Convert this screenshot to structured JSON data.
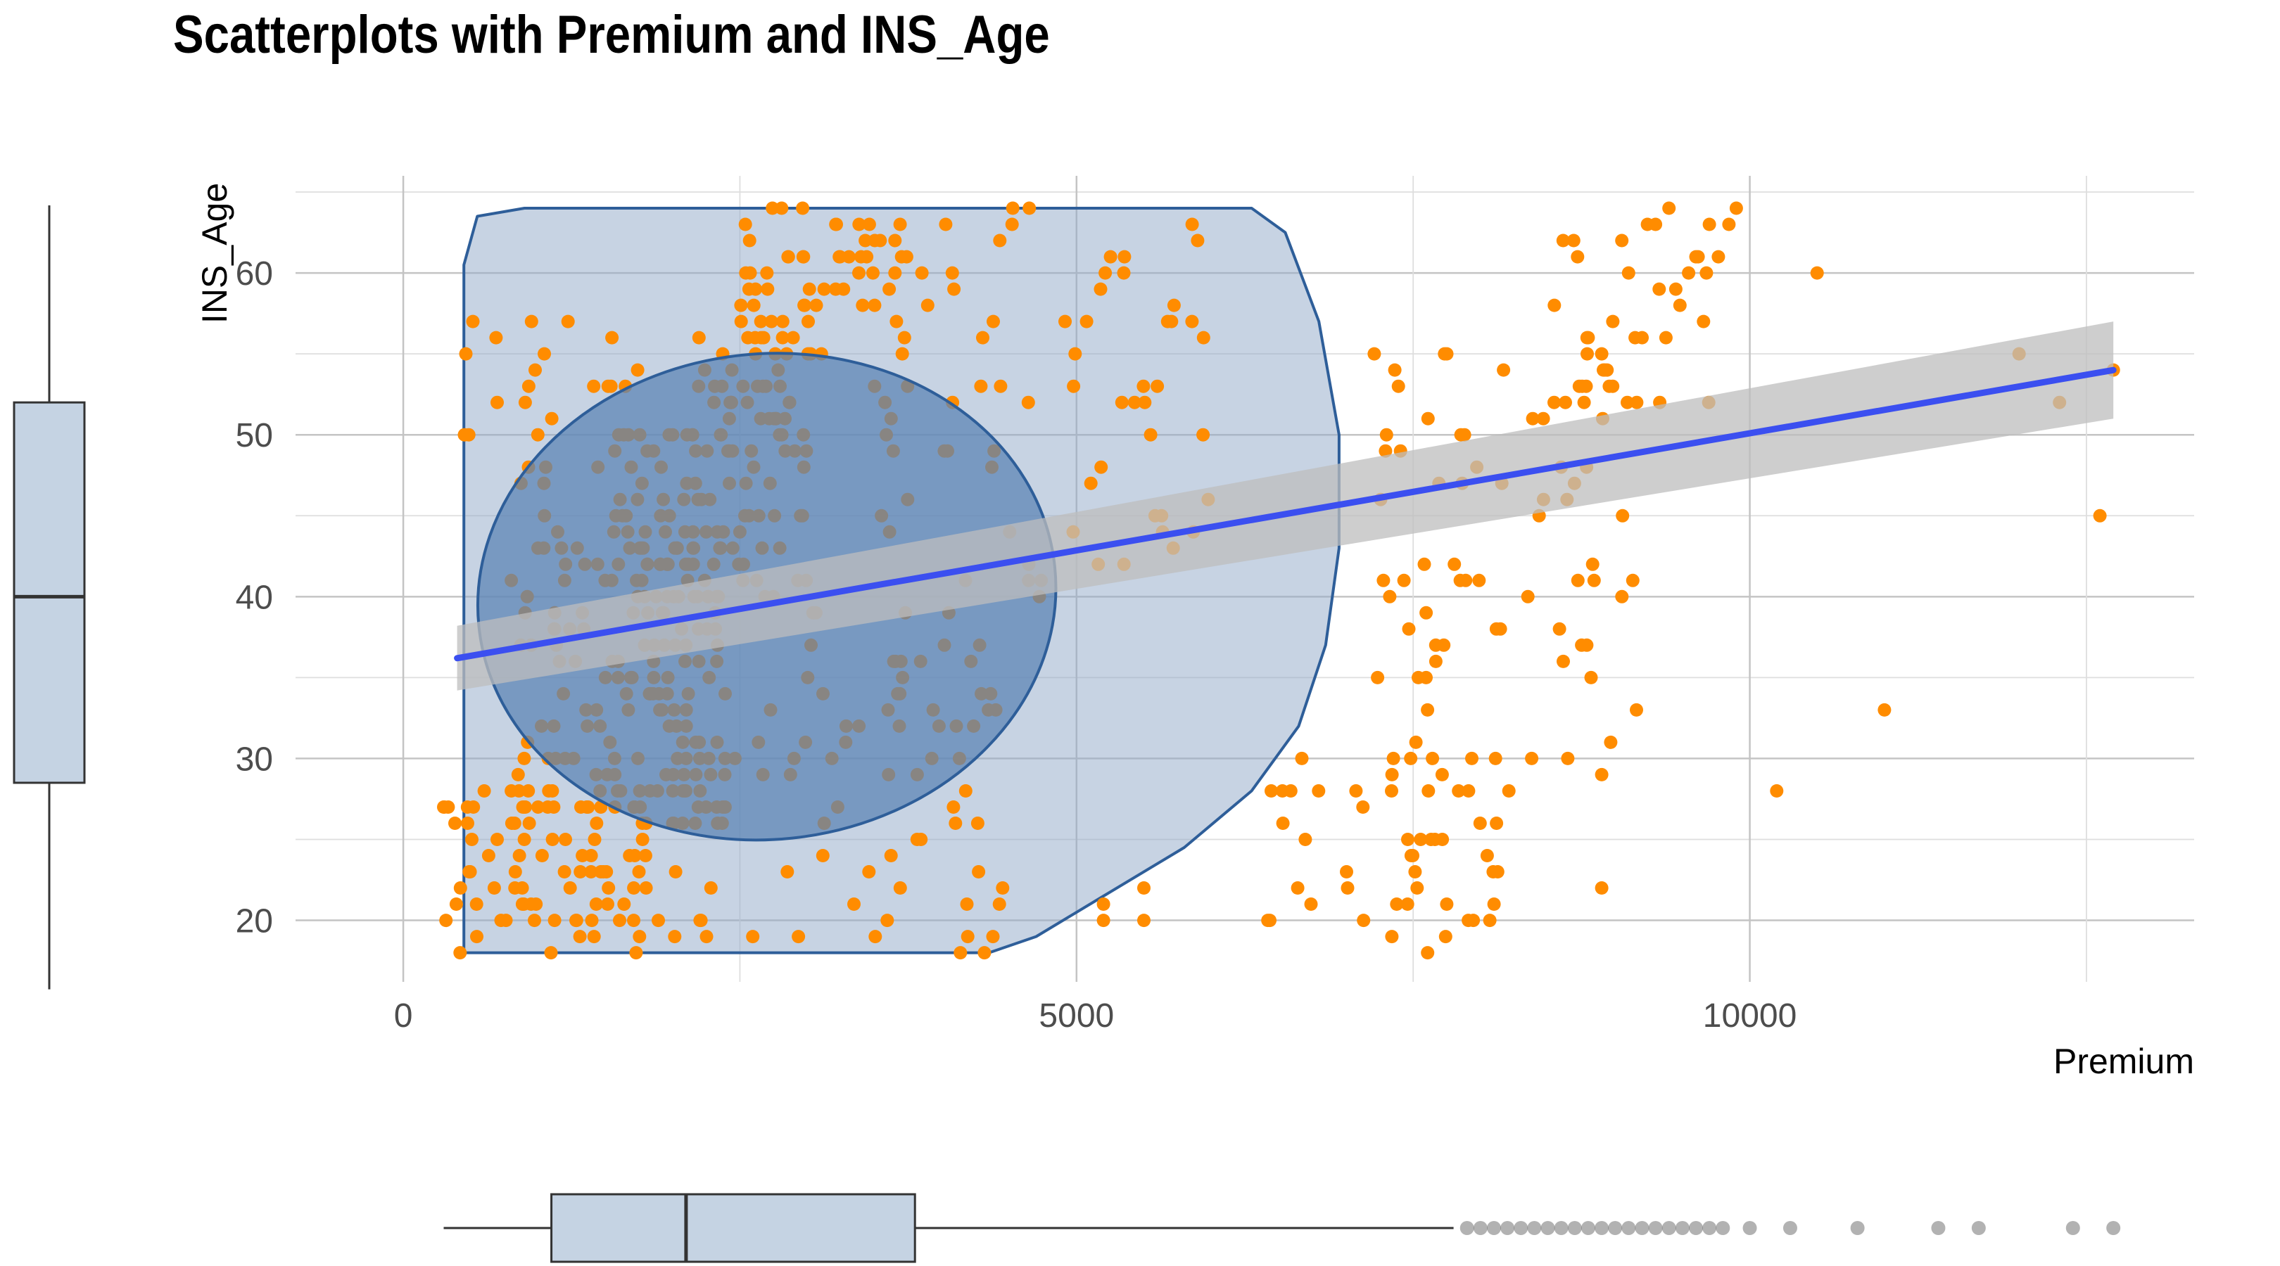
{
  "chart_data": {
    "type": "scatter",
    "title": "Scatterplots with Premium and INS_Age",
    "xlabel": "Premium",
    "ylabel": "INS_Age",
    "xlim": [
      -800,
      13300
    ],
    "ylim": [
      16.2,
      66
    ],
    "x_ticks": [
      0,
      5000,
      10000
    ],
    "y_ticks": [
      20,
      30,
      40,
      50,
      60
    ],
    "grid": true,
    "legend": "none",
    "colors": {
      "points": "#ff8c00",
      "regression_line": "#3b4ff0",
      "confidence_band": "#bdbdbd",
      "hull_fill": "#8fa8c8",
      "hull_outline": "#2e5e99",
      "ellipse_fill": "#5a82b4",
      "boxplot_fill": "#c5d3e3"
    },
    "regression": {
      "x_start": 400,
      "y_start": 36.2,
      "x_end": 12700,
      "y_end": 54.0,
      "band_start": 2.0,
      "band_end": 3.0
    },
    "convex_hull": [
      [
        450,
        18
      ],
      [
        4350,
        18
      ],
      [
        4700,
        19
      ],
      [
        5200,
        21.5
      ],
      [
        5800,
        24.5
      ],
      [
        6300,
        28
      ],
      [
        6650,
        32
      ],
      [
        6850,
        37
      ],
      [
        6950,
        43
      ],
      [
        6950,
        50
      ],
      [
        6800,
        57
      ],
      [
        6550,
        62.5
      ],
      [
        6300,
        64
      ],
      [
        900,
        64
      ],
      [
        550,
        63.5
      ],
      [
        450,
        60.5
      ]
    ],
    "ellipse": {
      "x_center": 2700,
      "y_center": 40,
      "x_radius": 2150,
      "y_radius": 15,
      "angle_deg": 6
    },
    "x_boxplot": {
      "min": 300,
      "q1": 1100,
      "median": 2100,
      "q3": 3800,
      "whisker_max": 7800,
      "outliers": [
        7900,
        8000,
        8100,
        8200,
        8300,
        8400,
        8500,
        8600,
        8700,
        8800,
        8900,
        9000,
        9100,
        9200,
        9300,
        9400,
        9500,
        9600,
        9700,
        9800,
        10000,
        10300,
        10800,
        11400,
        11700,
        12400,
        12700
      ]
    },
    "y_boxplot": {
      "min": 18,
      "q1": 28.5,
      "median": 40,
      "q3": 52,
      "max": 64
    },
    "clusters": [
      {
        "x": [
          300,
          1900
        ],
        "y": [
          18,
          28
        ],
        "n": 80
      },
      {
        "x": [
          800,
          2400
        ],
        "y": [
          26,
          44
        ],
        "n": 150
      },
      {
        "x": [
          1500,
          3000
        ],
        "y": [
          40,
          56
        ],
        "n": 120
      },
      {
        "x": [
          2500,
          3800
        ],
        "y": [
          55,
          64
        ],
        "n": 60
      },
      {
        "x": [
          2000,
          4500
        ],
        "y": [
          18,
          40
        ],
        "n": 90
      },
      {
        "x": [
          3500,
          6000
        ],
        "y": [
          40,
          64
        ],
        "n": 70
      },
      {
        "x": [
          300,
          1800
        ],
        "y": [
          44,
          58
        ],
        "n": 25
      },
      {
        "x": [
          6400,
          8300
        ],
        "y": [
          18,
          30
        ],
        "n": 50
      },
      {
        "x": [
          7200,
          9200
        ],
        "y": [
          30,
          56
        ],
        "n": 70
      },
      {
        "x": [
          8500,
          9900
        ],
        "y": [
          50,
          64
        ],
        "n": 30
      }
    ],
    "points": [
      [
        12700,
        54
      ],
      [
        12000,
        55
      ],
      [
        12300,
        52
      ],
      [
        12600,
        45
      ],
      [
        11000,
        33
      ],
      [
        10200,
        28
      ],
      [
        10500,
        60
      ],
      [
        9900,
        64
      ],
      [
        9400,
        64
      ],
      [
        9600,
        61
      ],
      [
        9100,
        60
      ],
      [
        9300,
        63
      ],
      [
        9700,
        63
      ],
      [
        8800,
        56
      ],
      [
        8900,
        55
      ],
      [
        8900,
        29
      ],
      [
        8900,
        22
      ],
      [
        5200,
        20
      ],
      [
        5200,
        21
      ],
      [
        5500,
        22
      ],
      [
        5500,
        20
      ]
    ]
  }
}
